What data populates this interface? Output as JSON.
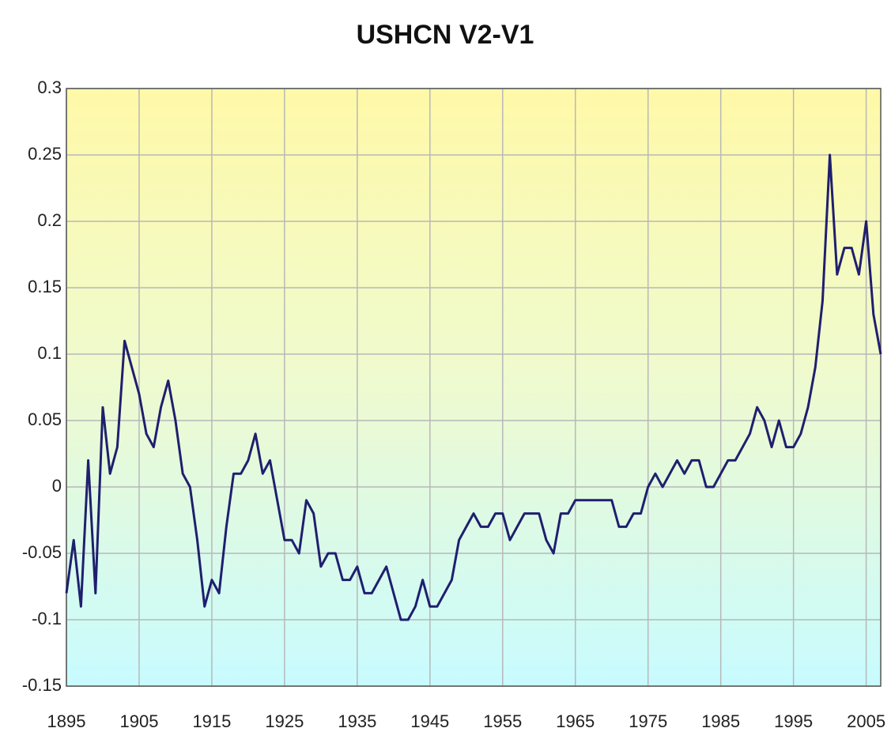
{
  "chart_data": {
    "type": "line",
    "title": "USHCN V2-V1",
    "x": [
      1895,
      1896,
      1897,
      1898,
      1899,
      1900,
      1901,
      1902,
      1903,
      1904,
      1905,
      1906,
      1907,
      1908,
      1909,
      1910,
      1911,
      1912,
      1913,
      1914,
      1915,
      1916,
      1917,
      1918,
      1919,
      1920,
      1921,
      1922,
      1923,
      1924,
      1925,
      1926,
      1927,
      1928,
      1929,
      1930,
      1931,
      1932,
      1933,
      1934,
      1935,
      1936,
      1937,
      1938,
      1939,
      1940,
      1941,
      1942,
      1943,
      1944,
      1945,
      1946,
      1947,
      1948,
      1949,
      1950,
      1951,
      1952,
      1953,
      1954,
      1955,
      1956,
      1957,
      1958,
      1959,
      1960,
      1961,
      1962,
      1963,
      1964,
      1965,
      1966,
      1967,
      1968,
      1969,
      1970,
      1971,
      1972,
      1973,
      1974,
      1975,
      1976,
      1977,
      1978,
      1979,
      1980,
      1981,
      1982,
      1983,
      1984,
      1985,
      1986,
      1987,
      1988,
      1989,
      1990,
      1991,
      1992,
      1993,
      1994,
      1995,
      1996,
      1997,
      1998,
      1999,
      2000,
      2001,
      2002,
      2003,
      2004,
      2005,
      2006,
      2007
    ],
    "series": [
      {
        "name": "USHCN V2-V1",
        "color": "#1f1f6e",
        "values": [
          -0.08,
          -0.04,
          -0.09,
          0.02,
          -0.08,
          0.06,
          0.01,
          0.03,
          0.11,
          0.09,
          0.07,
          0.04,
          0.03,
          0.06,
          0.08,
          0.05,
          0.01,
          0,
          -0.04,
          -0.09,
          -0.07,
          -0.08,
          -0.03,
          0.01,
          0.01,
          0.02,
          0.04,
          0.01,
          0.02,
          -0.01,
          -0.04,
          -0.04,
          -0.05,
          -0.01,
          -0.02,
          -0.06,
          -0.05,
          -0.05,
          -0.07,
          -0.07,
          -0.06,
          -0.08,
          -0.08,
          -0.07,
          -0.06,
          -0.08,
          -0.1,
          -0.1,
          -0.09,
          -0.07,
          -0.09,
          -0.09,
          -0.08,
          -0.07,
          -0.04,
          -0.03,
          -0.02,
          -0.03,
          -0.03,
          -0.02,
          -0.02,
          -0.04,
          -0.03,
          -0.02,
          -0.02,
          -0.02,
          -0.04,
          -0.05,
          -0.02,
          -0.02,
          -0.01,
          -0.01,
          -0.01,
          -0.01,
          -0.01,
          -0.01,
          -0.03,
          -0.03,
          -0.02,
          -0.02,
          0,
          0.01,
          0,
          0.01,
          0.02,
          0.01,
          0.02,
          0.02,
          0,
          0,
          0.01,
          0.02,
          0.02,
          0.03,
          0.04,
          0.06,
          0.05,
          0.03,
          0.05,
          0.03,
          0.03,
          0.04,
          0.06,
          0.09,
          0.14,
          0.25,
          0.16,
          0.18,
          0.18,
          0.16,
          0.2,
          0.13,
          0.1
        ]
      }
    ],
    "xlim": [
      1895,
      2007
    ],
    "xticks": [
      1895,
      1905,
      1915,
      1925,
      1935,
      1945,
      1955,
      1965,
      1975,
      1985,
      1995,
      2005
    ],
    "ylim": [
      -0.15,
      0.3
    ],
    "yticks": [
      -0.15,
      -0.1,
      -0.05,
      0,
      0.05,
      0.1,
      0.15,
      0.2,
      0.25,
      0.3
    ],
    "grid": true
  }
}
